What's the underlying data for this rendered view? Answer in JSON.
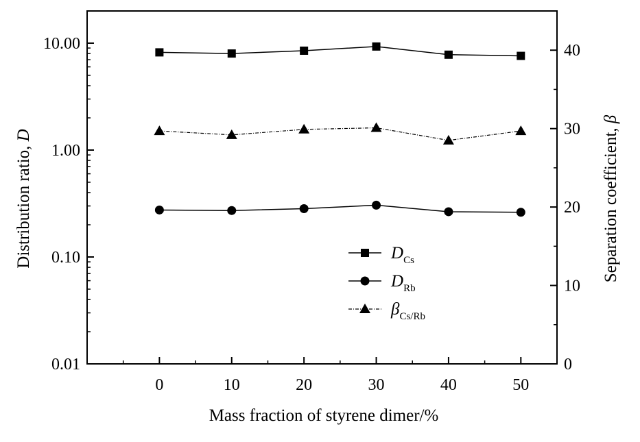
{
  "chart_data": {
    "type": "line",
    "xlabel": "Mass fraction of styrene dimer/%",
    "ylabel_left": "Distribution ratio, ",
    "ylabel_left_symbol": "D",
    "ylabel_right": "Separation coefficient, ",
    "ylabel_right_symbol": "β",
    "x": [
      0,
      10,
      20,
      30,
      40,
      50
    ],
    "x_ticks": [
      "0",
      "10",
      "20",
      "30",
      "40",
      "50"
    ],
    "xlim": [
      -10,
      55
    ],
    "left_axis": {
      "scale": "log",
      "ylim": [
        0.01,
        20
      ],
      "ticks": [
        0.01,
        0.1,
        1,
        10
      ],
      "tick_labels": [
        "0.01",
        "0.10",
        "1.00",
        "10.00"
      ]
    },
    "right_axis": {
      "scale": "linear",
      "ylim": [
        0,
        45
      ],
      "ticks": [
        0,
        10,
        20,
        30,
        40
      ],
      "tick_labels": [
        "0",
        "10",
        "20",
        "30",
        "40"
      ]
    },
    "series": [
      {
        "key": "DCs",
        "symbol": "D",
        "subscript": "Cs",
        "axis": "left",
        "marker": "square",
        "dash": "solid",
        "values": [
          8.2,
          8.0,
          8.5,
          9.3,
          7.8,
          7.6
        ]
      },
      {
        "key": "DRb",
        "symbol": "D",
        "subscript": "Rb",
        "axis": "left",
        "marker": "circle",
        "dash": "solid",
        "values": [
          0.275,
          0.272,
          0.283,
          0.305,
          0.265,
          0.262
        ]
      },
      {
        "key": "beta",
        "symbol": "β",
        "subscript": "Cs/Rb",
        "axis": "right",
        "marker": "triangle",
        "dash": "dashdot",
        "values": [
          29.7,
          29.2,
          29.9,
          30.1,
          28.5,
          29.7
        ]
      }
    ],
    "legend_placement": "lower-center",
    "grid": false
  }
}
